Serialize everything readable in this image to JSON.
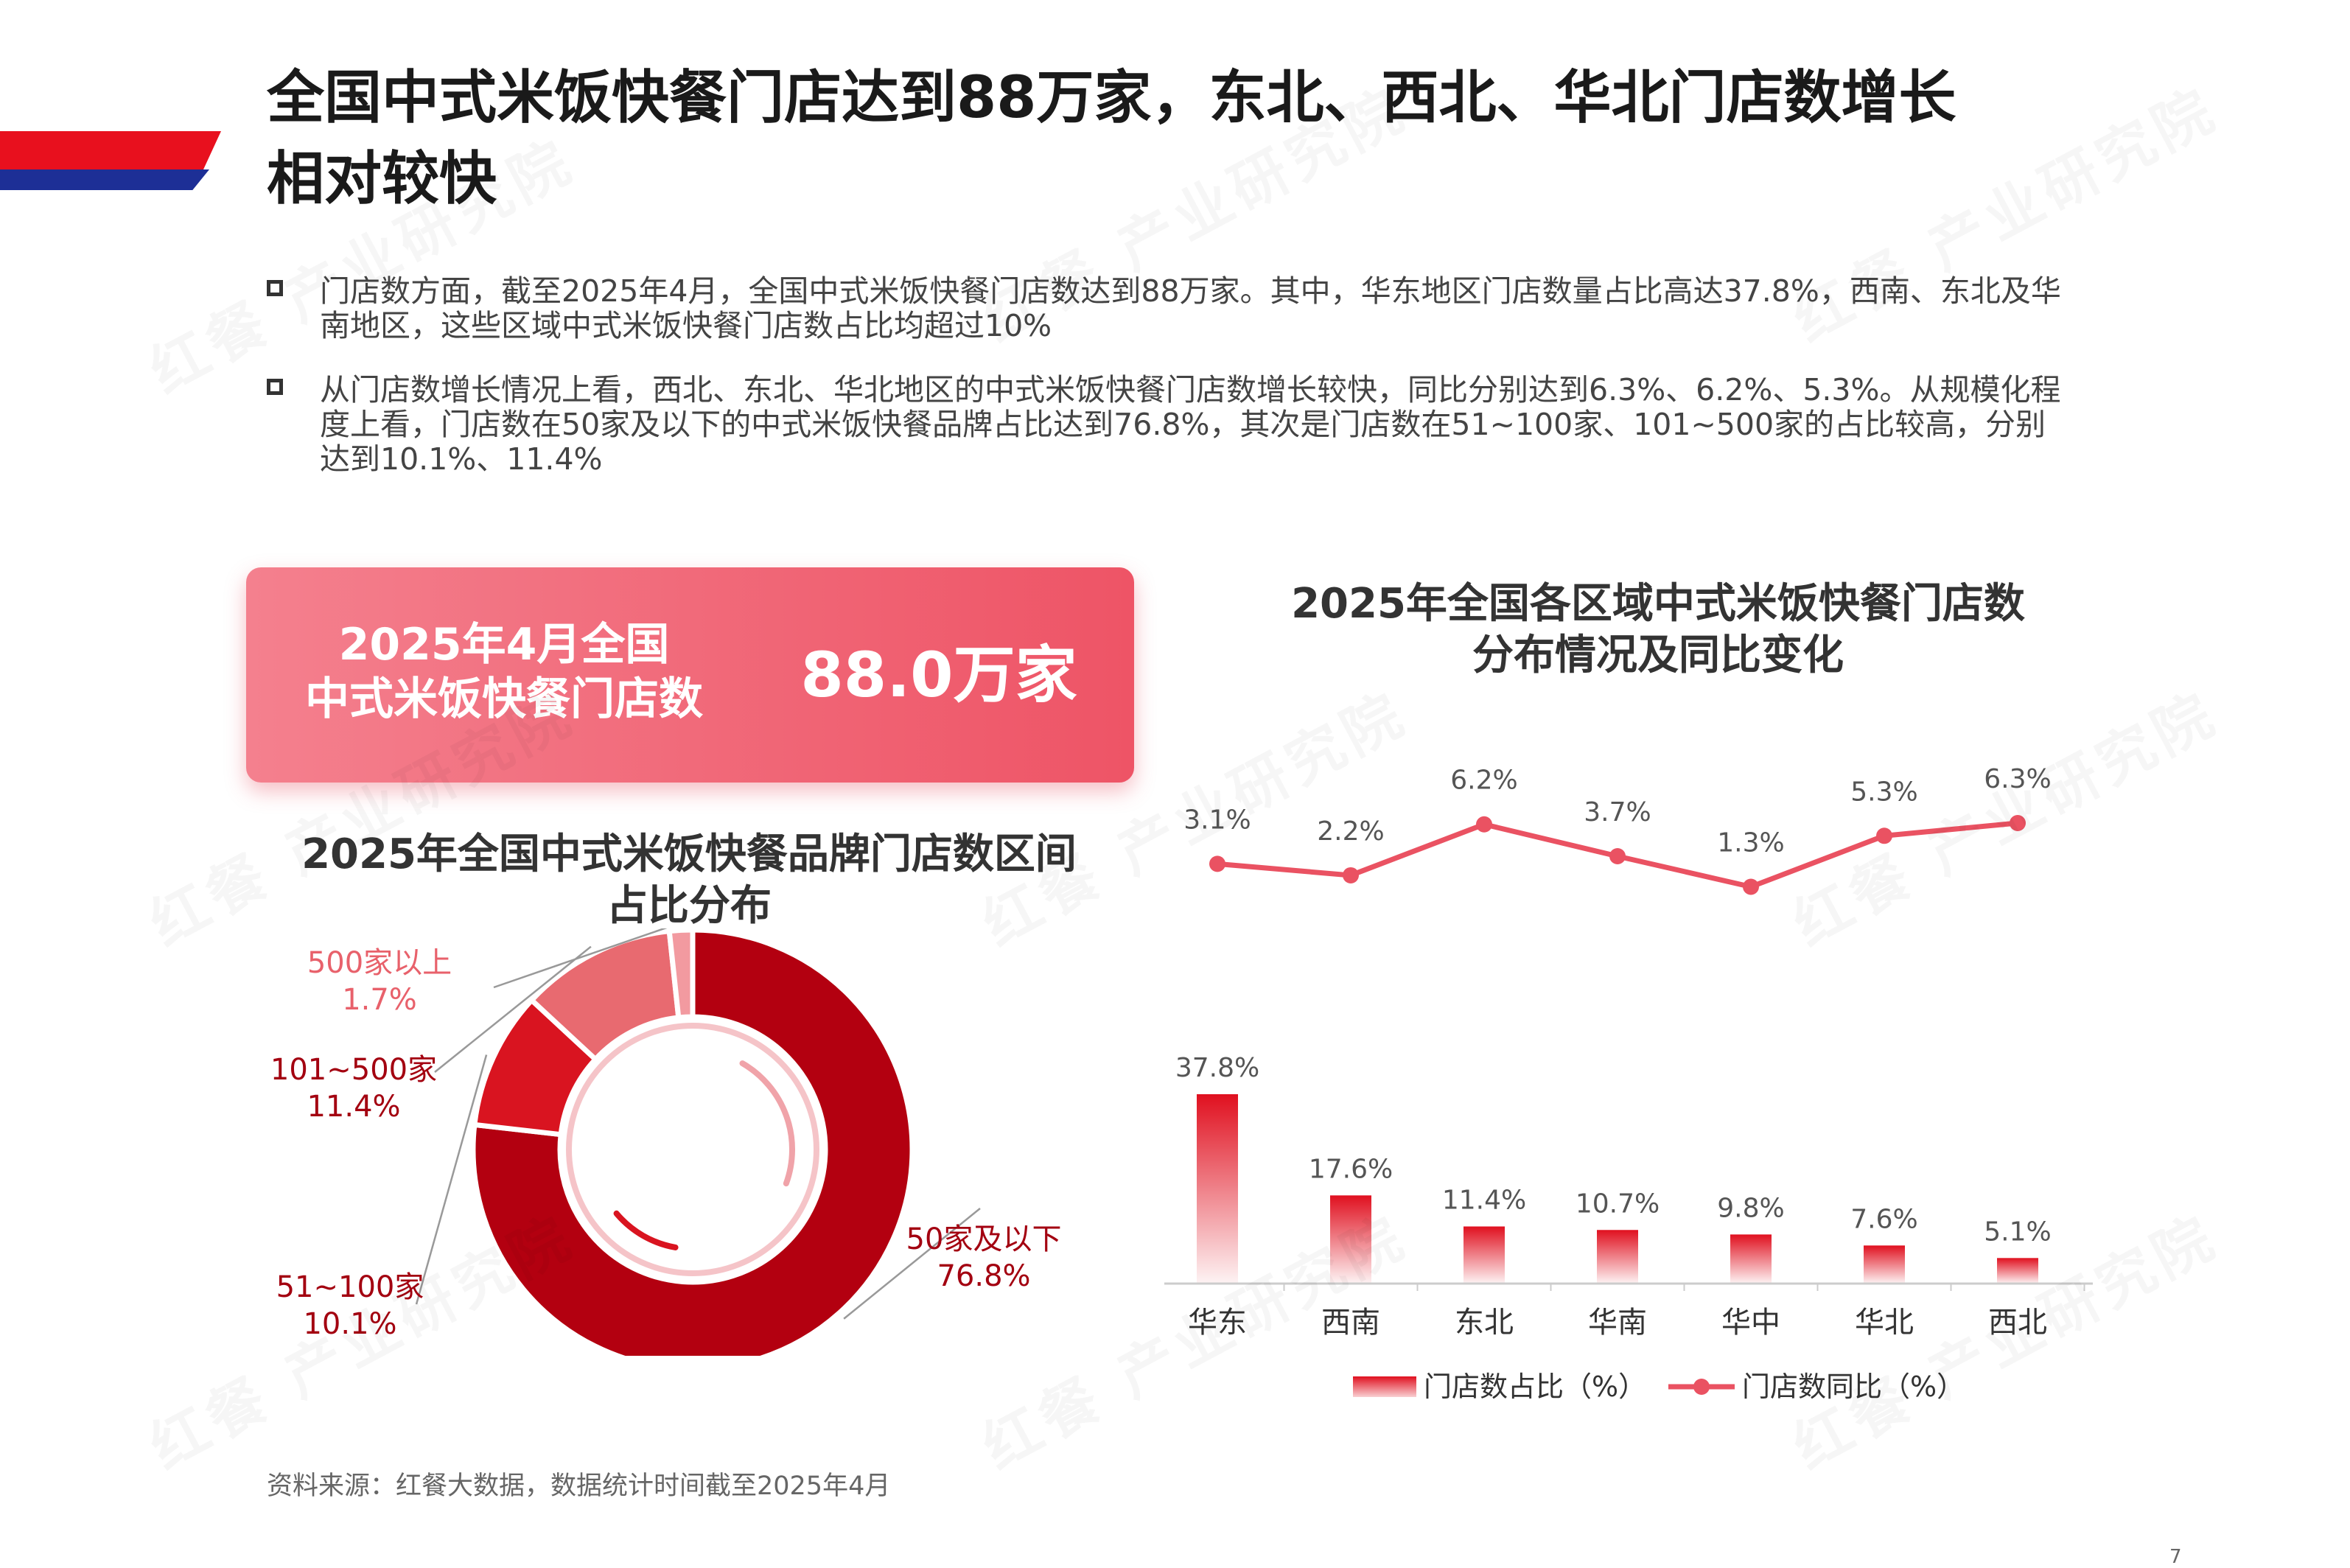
{
  "header": {
    "title_line1": "全国中式米饭快餐门店达到88万家，东北、西北、华北门店数增长",
    "title_line2": "相对较快"
  },
  "bullets": [
    "门店数方面，截至2025年4月，全国中式米饭快餐门店数达到88万家。其中，华东地区门店数量占比高达37.8%，西南、东北及华南地区，这些区域中式米饭快餐门店数占比均超过10%",
    "从门店数增长情况上看，西北、东北、华北地区的中式米饭快餐门店数增长较快，同比分别达到6.3%、6.2%、5.3%。从规模化程度上看，门店数在50家及以下的中式米饭快餐品牌占比达到76.8%，其次是门店数在51~100家、101~500家的占比较高，分别达到10.1%、11.4%"
  ],
  "kpi": {
    "label_line1": "2025年4月全国",
    "label_line2": "中式米饭快餐门店数",
    "value": "88.0万家"
  },
  "watermark": "红餐 产业研究院",
  "chart_data": [
    {
      "type": "bar",
      "title": "2025年全国各区域中式米饭快餐门店数分布情况及同比变化",
      "title_line1": "2025年全国各区域中式米饭快餐门店数",
      "title_line2": "分布情况及同比变化",
      "categories": [
        "华东",
        "西南",
        "东北",
        "华南",
        "华中",
        "华北",
        "西北"
      ],
      "series": [
        {
          "name": "门店数占比（%）",
          "type": "bar",
          "values": [
            37.8,
            17.6,
            11.4,
            10.7,
            9.8,
            7.6,
            5.1
          ],
          "labels": [
            "37.8%",
            "17.6%",
            "11.4%",
            "10.7%",
            "9.8%",
            "7.6%",
            "5.1%"
          ]
        },
        {
          "name": "门店数同比（%）",
          "type": "line",
          "values": [
            3.1,
            2.2,
            6.2,
            3.7,
            1.3,
            5.3,
            6.3
          ],
          "labels": [
            "3.1%",
            "2.2%",
            "6.2%",
            "3.7%",
            "1.3%",
            "5.3%",
            "6.3%"
          ]
        }
      ],
      "legend": "bottom",
      "grid": false,
      "colors": {
        "bar": "#e0101f",
        "line": "#ea5262"
      }
    },
    {
      "type": "pie",
      "title": "2025年全国中式米饭快餐品牌门店数区间占比分布",
      "title_line1": "2025年全国中式米饭快餐品牌门店数区间",
      "title_line2": "占比分布",
      "donut": true,
      "slices": [
        {
          "name": "50家及以下",
          "value": 76.8,
          "label": "76.8%",
          "color": "#b30010"
        },
        {
          "name": "51~100家",
          "value": 10.1,
          "label": "10.1%",
          "color": "#d91420"
        },
        {
          "name": "101~500家",
          "value": 11.4,
          "label": "11.4%",
          "color": "#e86a70"
        },
        {
          "name": "500家以上",
          "value": 1.7,
          "label": "1.7%",
          "color": "#f29aa0"
        }
      ]
    }
  ],
  "footer": {
    "source": "资料来源：红餐大数据，数据统计时间截至2025年4月",
    "page": "7"
  }
}
